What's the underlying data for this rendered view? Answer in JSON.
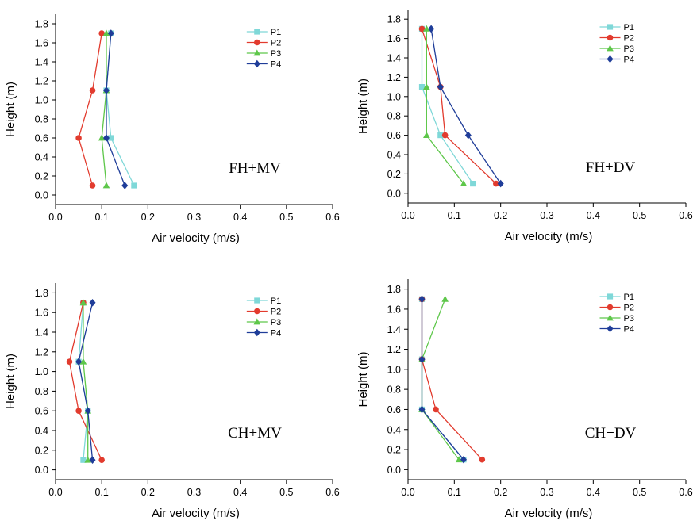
{
  "chart_data": [
    {
      "type": "line",
      "annotation": "FH+MV",
      "xlabel": "Air velocity (m/s)",
      "ylabel": "Height (m)",
      "xlim": [
        0.0,
        0.6
      ],
      "ylim": [
        -0.1,
        1.9
      ],
      "xticks": [
        "0.0",
        "0.1",
        "0.2",
        "0.3",
        "0.4",
        "0.5",
        "0.6"
      ],
      "yticks": [
        "0.0",
        "0.2",
        "0.4",
        "0.6",
        "0.8",
        "1.0",
        "1.2",
        "1.4",
        "1.6",
        "1.8"
      ],
      "legend_position": "top-right",
      "grid": false,
      "y": [
        0.1,
        0.6,
        1.1,
        1.7
      ],
      "series": [
        {
          "name": "P1",
          "x": [
            0.17,
            0.12,
            0.11,
            0.12
          ],
          "y": [
            0.1,
            0.6,
            1.1,
            1.7
          ]
        },
        {
          "name": "P2",
          "x": [
            0.08,
            0.05,
            0.08,
            0.1
          ],
          "y": [
            0.1,
            0.6,
            1.1,
            1.7
          ]
        },
        {
          "name": "P3",
          "x": [
            0.11,
            0.1,
            0.11,
            0.11
          ],
          "y": [
            0.1,
            0.6,
            1.1,
            1.7
          ]
        },
        {
          "name": "P4",
          "x": [
            0.15,
            0.11,
            0.11,
            0.12
          ],
          "y": [
            0.1,
            0.6,
            1.1,
            1.7
          ]
        }
      ]
    },
    {
      "type": "line",
      "annotation": "FH+DV",
      "xlabel": "Air velocity (m/s)",
      "ylabel": "Height (m)",
      "xlim": [
        0.0,
        0.6
      ],
      "ylim": [
        -0.1,
        1.9
      ],
      "xticks": [
        "0.0",
        "0.1",
        "0.2",
        "0.3",
        "0.4",
        "0.5",
        "0.6"
      ],
      "yticks": [
        "0.0",
        "0.2",
        "0.4",
        "0.6",
        "0.8",
        "1.0",
        "1.2",
        "1.4",
        "1.6",
        "1.8"
      ],
      "legend_position": "top-right",
      "grid": false,
      "series": [
        {
          "name": "P1",
          "x": [
            0.14,
            0.07,
            0.03,
            0.03
          ],
          "y": [
            0.1,
            0.6,
            1.1,
            1.7
          ]
        },
        {
          "name": "P2",
          "x": [
            0.19,
            0.08,
            0.07,
            0.03
          ],
          "y": [
            0.1,
            0.6,
            1.1,
            1.7
          ]
        },
        {
          "name": "P3",
          "x": [
            0.12,
            0.04,
            0.04,
            0.04
          ],
          "y": [
            0.1,
            0.6,
            1.1,
            1.7
          ]
        },
        {
          "name": "P4",
          "x": [
            0.2,
            0.13,
            0.07,
            0.05
          ],
          "y": [
            0.1,
            0.6,
            1.1,
            1.7
          ]
        }
      ]
    },
    {
      "type": "line",
      "annotation": "CH+MV",
      "xlabel": "Air velocity (m/s)",
      "ylabel": "Height (m)",
      "xlim": [
        0.0,
        0.6
      ],
      "ylim": [
        -0.1,
        1.9
      ],
      "xticks": [
        "0.0",
        "0.1",
        "0.2",
        "0.3",
        "0.4",
        "0.5",
        "0.6"
      ],
      "yticks": [
        "0.0",
        "0.2",
        "0.4",
        "0.6",
        "0.8",
        "1.0",
        "1.2",
        "1.4",
        "1.6",
        "1.8"
      ],
      "legend_position": "top-right",
      "grid": false,
      "series": [
        {
          "name": "P1",
          "x": [
            0.06,
            0.07,
            0.05,
            0.06
          ],
          "y": [
            0.1,
            0.6,
            1.1,
            1.7
          ]
        },
        {
          "name": "P2",
          "x": [
            0.1,
            0.05,
            0.03,
            0.06
          ],
          "y": [
            0.1,
            0.6,
            1.1,
            1.7
          ]
        },
        {
          "name": "P3",
          "x": [
            0.07,
            0.07,
            0.06,
            0.06
          ],
          "y": [
            0.1,
            0.6,
            1.1,
            1.7
          ]
        },
        {
          "name": "P4",
          "x": [
            0.08,
            0.07,
            0.05,
            0.08
          ],
          "y": [
            0.1,
            0.6,
            1.1,
            1.7
          ]
        }
      ]
    },
    {
      "type": "line",
      "annotation": "CH+DV",
      "xlabel": "Air velocity (m/s)",
      "ylabel": "Height (m)",
      "xlim": [
        0.0,
        0.6
      ],
      "ylim": [
        -0.1,
        1.9
      ],
      "xticks": [
        "0.0",
        "0.1",
        "0.2",
        "0.3",
        "0.4",
        "0.5",
        "0.6"
      ],
      "yticks": [
        "0.0",
        "0.2",
        "0.4",
        "0.6",
        "0.8",
        "1.0",
        "1.2",
        "1.4",
        "1.6",
        "1.8"
      ],
      "legend_position": "top-right",
      "grid": false,
      "series": [
        {
          "name": "P1",
          "x": [
            0.12,
            0.03,
            0.03,
            0.03
          ],
          "y": [
            0.1,
            0.6,
            1.1,
            1.7
          ]
        },
        {
          "name": "P2",
          "x": [
            0.16,
            0.06,
            0.03,
            0.03
          ],
          "y": [
            0.1,
            0.6,
            1.1,
            1.7
          ]
        },
        {
          "name": "P3",
          "x": [
            0.11,
            0.03,
            0.03,
            0.08
          ],
          "y": [
            0.1,
            0.6,
            1.1,
            1.7
          ]
        },
        {
          "name": "P4",
          "x": [
            0.12,
            0.03,
            0.03,
            0.03
          ],
          "y": [
            0.1,
            0.6,
            1.1,
            1.7
          ]
        }
      ]
    }
  ],
  "series_styles": [
    {
      "color": "#7fd8d8",
      "marker": "square"
    },
    {
      "color": "#e23b2e",
      "marker": "circle"
    },
    {
      "color": "#5ec74a",
      "marker": "triangle"
    },
    {
      "color": "#1f3d99",
      "marker": "diamond"
    }
  ]
}
